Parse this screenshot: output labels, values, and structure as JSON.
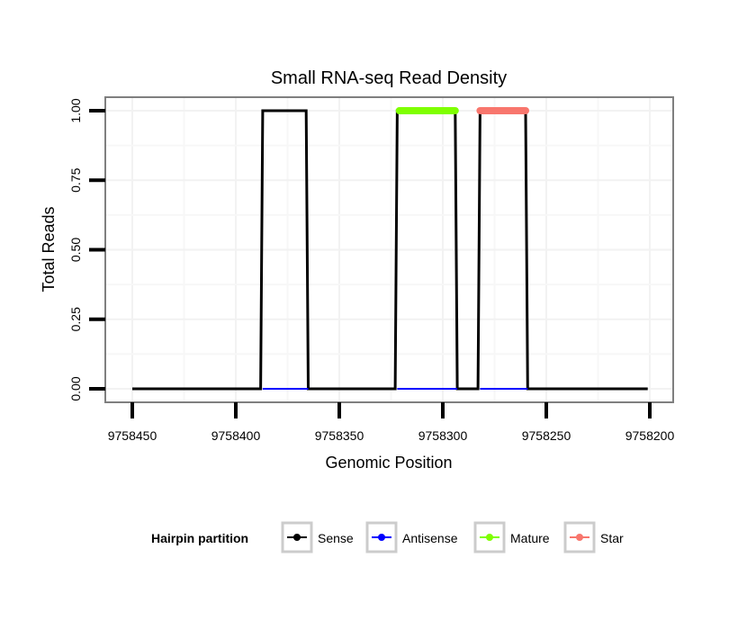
{
  "chart_data": {
    "type": "line",
    "title": "Small RNA-seq Read Density",
    "xlabel": "Genomic Position",
    "ylabel": "Total Reads",
    "xlim": [
      9758450,
      9758200
    ],
    "x_reversed": true,
    "ylim": [
      0,
      1
    ],
    "grid": true,
    "x_ticks": [
      9758450,
      9758400,
      9758350,
      9758300,
      9758250,
      9758200
    ],
    "x_tick_labels": [
      "9758450",
      "9758400",
      "9758350",
      "9758300",
      "9758250",
      "9758200"
    ],
    "y_ticks": [
      0,
      0.25,
      0.5,
      0.75,
      1
    ],
    "y_tick_labels": [
      "0.00",
      "0.25",
      "0.50",
      "0.75",
      "1.00"
    ],
    "legend": {
      "title": "Hairpin partition",
      "position": "bottom"
    },
    "series": [
      {
        "name": "Sense",
        "color": "#000000",
        "segments": [
          [
            [
              9758450,
              0
            ],
            [
              9758388,
              0
            ],
            [
              9758387,
              1
            ],
            [
              9758366,
              1
            ],
            [
              9758365,
              0
            ],
            [
              9758323,
              0
            ],
            [
              9758322,
              1
            ],
            [
              9758294,
              1
            ],
            [
              9758293,
              0
            ],
            [
              9758283,
              0
            ],
            [
              9758282,
              1
            ],
            [
              9758260,
              1
            ],
            [
              9758259,
              0
            ],
            [
              9758201,
              0
            ]
          ]
        ]
      },
      {
        "name": "Antisense",
        "color": "#0000FF",
        "segments": [
          [
            [
              9758387,
              0
            ],
            [
              9758365,
              0
            ]
          ],
          [
            [
              9758322,
              0
            ],
            [
              9758293,
              0
            ]
          ],
          [
            [
              9758282,
              0
            ],
            [
              9758259,
              0
            ]
          ]
        ]
      },
      {
        "name": "Mature",
        "color": "#7FFF00",
        "segments": [
          [
            [
              9758321,
              1
            ],
            [
              9758294,
              1
            ]
          ]
        ]
      },
      {
        "name": "Star",
        "color": "#F8766D",
        "segments": [
          [
            [
              9758282,
              1
            ],
            [
              9758260,
              1
            ]
          ]
        ]
      }
    ]
  }
}
